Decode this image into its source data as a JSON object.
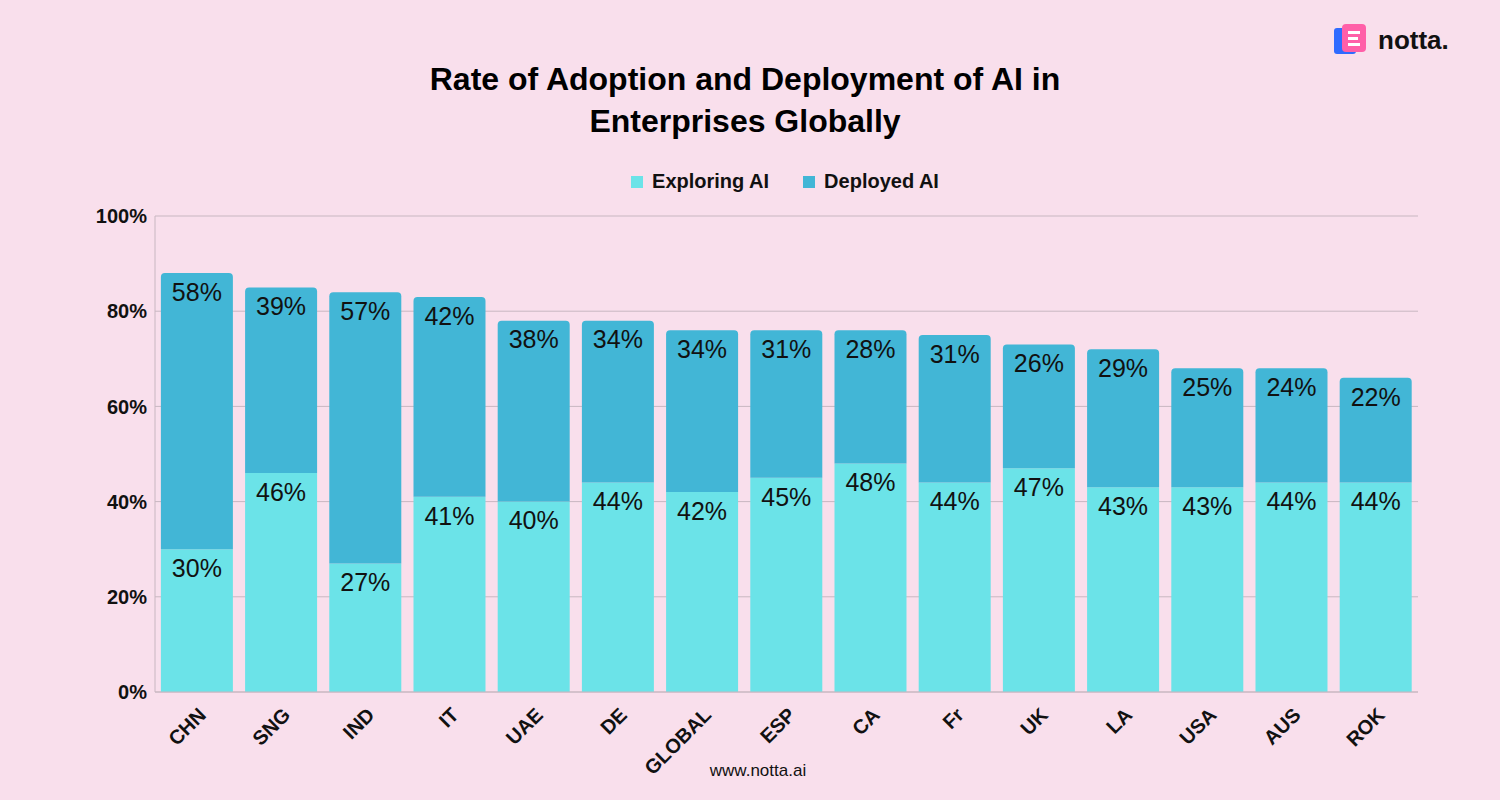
{
  "chart_data": {
    "type": "bar",
    "title": "Rate of Adoption and Deployment of AI in Enterprises Globally",
    "logo": "notta.",
    "source": "www.notta.ai",
    "categories": [
      "CHN",
      "SNG",
      "IND",
      "IT",
      "UAE",
      "DE",
      "GLOBAL",
      "ESP",
      "CA",
      "Fr",
      "UK",
      "LA",
      "USA",
      "AUS",
      "ROK"
    ],
    "series": [
      {
        "name": "Exploring AI",
        "color": "#6be3e8",
        "values": [
          30,
          46,
          27,
          41,
          40,
          44,
          42,
          45,
          48,
          44,
          47,
          43,
          43,
          44,
          44
        ],
        "value_labels": [
          "30%",
          "46%",
          "27%",
          "41%",
          "40%",
          "44%",
          "42%",
          "45%",
          "48%",
          "44%",
          "47%",
          "43%",
          "43%",
          "44%",
          "44%"
        ]
      },
      {
        "name": "Deployed AI",
        "color": "#42b6d6",
        "values": [
          58,
          39,
          57,
          42,
          38,
          34,
          34,
          31,
          28,
          31,
          26,
          29,
          25,
          24,
          22
        ],
        "value_labels": [
          "58%",
          "39%",
          "57%",
          "42%",
          "38%",
          "34%",
          "34%",
          "31%",
          "28%",
          "31%",
          "26%",
          "29%",
          "25%",
          "24%",
          "22%"
        ]
      }
    ],
    "ylim": [
      0,
      100
    ],
    "yticks": [
      {
        "value": 0,
        "label": "0%"
      },
      {
        "value": 20,
        "label": "20%"
      },
      {
        "value": 40,
        "label": "40%"
      },
      {
        "value": 60,
        "label": "60%"
      },
      {
        "value": 80,
        "label": "80%"
      },
      {
        "value": 100,
        "label": "100%"
      }
    ],
    "stacked": true,
    "data_labels": true,
    "grid": true,
    "legend": "top"
  }
}
